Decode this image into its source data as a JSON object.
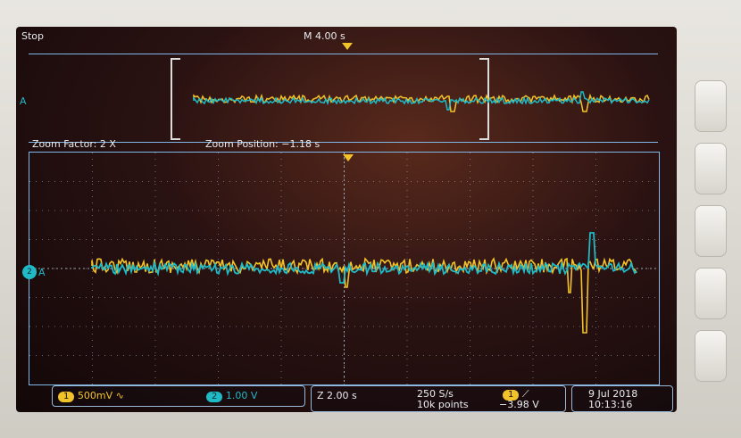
{
  "header": {
    "run_state": "Stop",
    "timebase": "M 4.00 s"
  },
  "overview": {
    "channel_label": "A"
  },
  "zoom": {
    "factor_label": "Zoom Factor: 2 X",
    "position_label": "Zoom Position: −1.18 s",
    "channel_label": "A"
  },
  "status": {
    "ch1_badge": "1",
    "ch1_scale": "500mV",
    "ch1_coupling_icon": "sine-icon",
    "ch2_badge": "2",
    "ch2_scale": "1.00 V",
    "zoom_timebase": "Z 2.00 s",
    "sample_rate": "250 S/s",
    "record_length": "10k points",
    "trigger_source_badge": "1",
    "trigger_slope_icon": "rising-edge-icon",
    "trigger_level": "−3.98 V",
    "date": "9 Jul  2018",
    "time": "10:13:16"
  },
  "colors": {
    "ch1": "#f2c22b",
    "ch2": "#20b9c6",
    "grid": "#b8c7d6",
    "frame": "#7fb7e8"
  }
}
